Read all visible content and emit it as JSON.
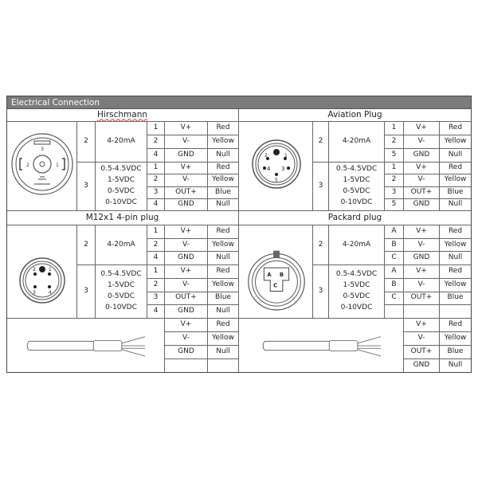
{
  "header": {
    "title": "Electrical Connection"
  },
  "sections": [
    {
      "title": "Hirschmann",
      "connector_icon": "hirschmann-connector-icon",
      "groups": [
        {
          "wires": "2",
          "signals": [
            "4-20mA"
          ],
          "pins": [
            [
              "1",
              "V+",
              "Red"
            ],
            [
              "2",
              "V-",
              "Yellow"
            ],
            [
              "4",
              "GND",
              "Null"
            ]
          ]
        },
        {
          "wires": "3",
          "signals": [
            "0.5-4.5VDC",
            "1-5VDC",
            "0-5VDC",
            "0-10VDC"
          ],
          "pins": [
            [
              "1",
              "V+",
              "Red"
            ],
            [
              "2",
              "V-",
              "Yellow"
            ],
            [
              "3",
              "OUT+",
              "Blue"
            ],
            [
              "4",
              "GND",
              "Null"
            ]
          ]
        }
      ]
    },
    {
      "title": "Aviation Plug",
      "connector_icon": "aviation-plug-icon",
      "groups": [
        {
          "wires": "2",
          "signals": [
            "4-20mA"
          ],
          "pins": [
            [
              "1",
              "V+",
              "Red"
            ],
            [
              "2",
              "V-",
              "Yellow"
            ],
            [
              "5",
              "GND",
              "Null"
            ]
          ]
        },
        {
          "wires": "3",
          "signals": [
            "0.5-4.5VDC",
            "1-5VDC",
            "0-5VDC",
            "0-10VDC"
          ],
          "pins": [
            [
              "1",
              "V+",
              "Red"
            ],
            [
              "2",
              "V-",
              "Yellow"
            ],
            [
              "3",
              "OUT+",
              "Blue"
            ],
            [
              "5",
              "GND",
              "Null"
            ]
          ]
        }
      ]
    },
    {
      "title": "M12x1 4-pin plug",
      "connector_icon": "m12-plug-icon",
      "groups": [
        {
          "wires": "2",
          "signals": [
            "4-20mA"
          ],
          "pins": [
            [
              "1",
              "V+",
              "Red"
            ],
            [
              "2",
              "V-",
              "Yellow"
            ],
            [
              "4",
              "GND",
              "Null"
            ]
          ]
        },
        {
          "wires": "3",
          "signals": [
            "0.5-4.5VDC",
            "1-5VDC",
            "0-5VDC",
            "0-10VDC"
          ],
          "pins": [
            [
              "1",
              "V+",
              "Red"
            ],
            [
              "2",
              "V-",
              "Yellow"
            ],
            [
              "3",
              "OUT+",
              "Blue"
            ],
            [
              "4",
              "GND",
              "Null"
            ]
          ]
        }
      ]
    },
    {
      "title": "Packard plug",
      "connector_icon": "packard-plug-icon",
      "groups": [
        {
          "wires": "2",
          "signals": [
            "4-20mA"
          ],
          "pins": [
            [
              "A",
              "V+",
              "Red"
            ],
            [
              "B",
              "V-",
              "Yellow"
            ],
            [
              "C",
              "GND",
              "Null"
            ]
          ]
        },
        {
          "wires": "3",
          "signals": [
            "0.5-4.5VDC",
            "1-5VDC",
            "0-5VDC",
            "0-10VDC"
          ],
          "pins": [
            [
              "A",
              "V+",
              "Red"
            ],
            [
              "B",
              "V-",
              "Yellow"
            ],
            [
              "C",
              "OUT+",
              "Blue"
            ],
            [
              "",
              "",
              ""
            ]
          ]
        }
      ]
    }
  ],
  "cables": [
    {
      "icon": "cable-icon",
      "rows": [
        [
          "V+",
          "Red"
        ],
        [
          "V-",
          "Yellow"
        ],
        [
          "GND",
          "Null"
        ],
        [
          "",
          ""
        ]
      ]
    },
    {
      "icon": "cable-icon",
      "rows": [
        [
          "V+",
          "Red"
        ],
        [
          "V-",
          "Yellow"
        ],
        [
          "OUT+",
          "Blue"
        ],
        [
          "GND",
          "Null"
        ]
      ]
    }
  ],
  "colors": {
    "header_bg": "#7b7b7b",
    "header_text": "#ffffff",
    "grid": "#666666"
  }
}
